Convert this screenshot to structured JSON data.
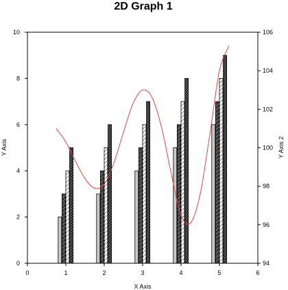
{
  "chart_data": {
    "type": "bar",
    "title": "2D Graph 1",
    "xlabel": "X Axis",
    "ylabel": "Y Axis",
    "ylabel2": "Y Axis 2",
    "xlim": [
      0,
      6
    ],
    "ylim": [
      0,
      10
    ],
    "y2lim": [
      94,
      106
    ],
    "xticks": [
      0,
      1,
      2,
      3,
      4,
      5,
      6
    ],
    "yticks": [
      0,
      2,
      4,
      6,
      8,
      10
    ],
    "y2ticks": [
      94,
      96,
      98,
      100,
      102,
      104,
      106
    ],
    "grid": false,
    "categories": [
      1,
      2,
      3,
      4,
      5
    ],
    "series": [
      {
        "values": [
          2,
          3,
          4,
          5,
          6
        ],
        "fill": "#c8c8c8",
        "pattern": "solid"
      },
      {
        "values": [
          3,
          4,
          5,
          6,
          7
        ],
        "fill": "#505050",
        "pattern": "hatch-dark"
      },
      {
        "values": [
          4,
          5,
          6,
          7,
          8
        ],
        "fill": "#ffffff",
        "pattern": "hatch-light"
      },
      {
        "values": [
          5,
          6,
          7,
          8,
          9
        ],
        "fill": "#1a1a1a",
        "pattern": "crosshatch"
      }
    ],
    "line_series": {
      "axis": "y2",
      "color": "#e8413b",
      "points": [
        [
          0.75,
          101.0
        ],
        [
          1.0,
          100.3
        ],
        [
          1.25,
          99.3
        ],
        [
          1.5,
          98.4
        ],
        [
          1.75,
          97.9
        ],
        [
          2.0,
          98.1
        ],
        [
          2.25,
          99.2
        ],
        [
          2.5,
          100.8
        ],
        [
          2.75,
          102.3
        ],
        [
          3.0,
          103.0
        ],
        [
          3.25,
          102.6
        ],
        [
          3.5,
          101.0
        ],
        [
          3.75,
          98.6
        ],
        [
          4.0,
          96.5
        ],
        [
          4.25,
          96.1
        ],
        [
          4.5,
          97.6
        ],
        [
          4.75,
          100.7
        ],
        [
          5.0,
          104.0
        ],
        [
          5.25,
          105.3
        ]
      ]
    }
  }
}
